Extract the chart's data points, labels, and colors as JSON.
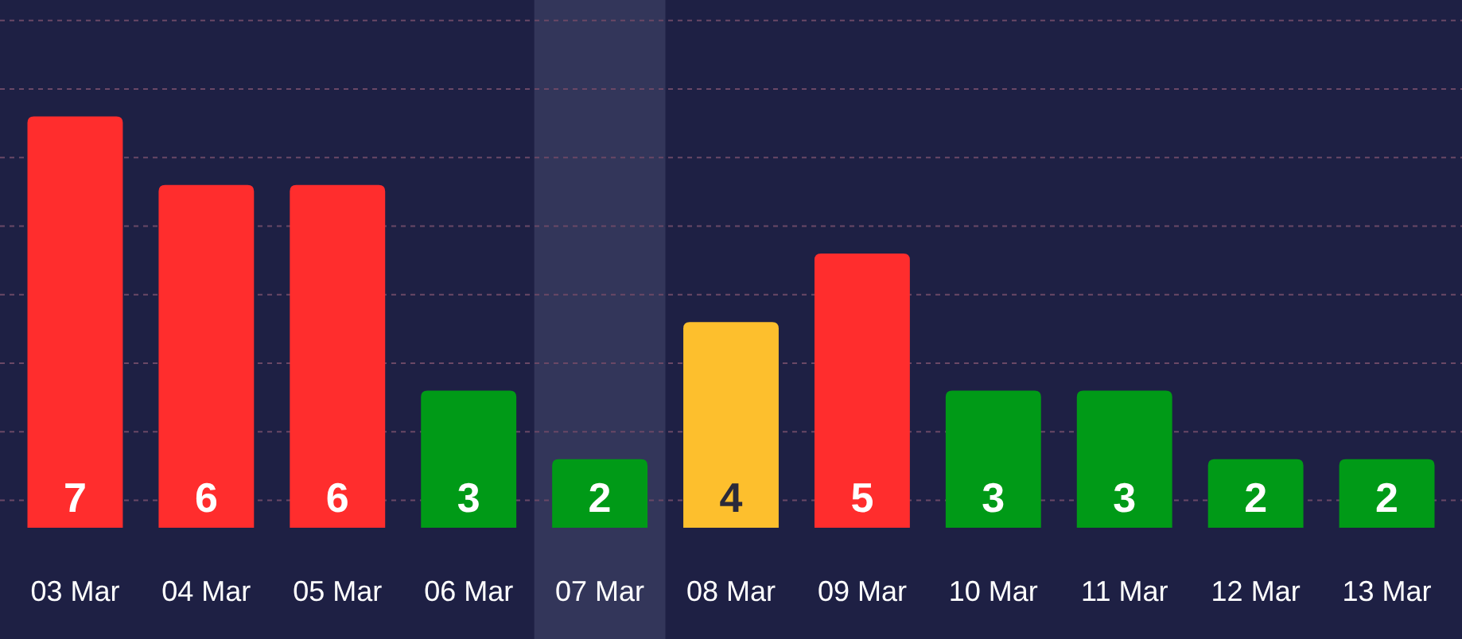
{
  "chart_data": {
    "type": "bar",
    "categories": [
      "03 Mar",
      "04 Mar",
      "05 Mar",
      "06 Mar",
      "07 Mar",
      "08 Mar",
      "09 Mar",
      "10 Mar",
      "11 Mar",
      "12 Mar",
      "13 Mar"
    ],
    "values": [
      7,
      6,
      6,
      3,
      2,
      4,
      5,
      3,
      3,
      2,
      2
    ],
    "colors": [
      "#ff2d2d",
      "#ff2d2d",
      "#ff2d2d",
      "#009a17",
      "#009a17",
      "#fdbf2d",
      "#ff2d2d",
      "#009a17",
      "#009a17",
      "#009a17",
      "#009a17"
    ],
    "ylim": [
      1,
      8.7
    ],
    "yticks": [
      {
        "value": 1.4,
        "label": null
      },
      {
        "value": 2.4,
        "label": null
      },
      {
        "value": 3.4,
        "label": null
      },
      {
        "value": 4.4,
        "label": null
      },
      {
        "value": 5.4,
        "label": null
      },
      {
        "value": 6.4,
        "label": null
      },
      {
        "value": 7.4,
        "label": null
      },
      {
        "value": 8.4,
        "label": null
      }
    ],
    "grid": "y",
    "tick_labels": "x",
    "data_labels": true,
    "bands": [
      {
        "axis": "x",
        "from": "07 Mar",
        "to": "07 Mar",
        "color": "#33365a"
      }
    ]
  }
}
